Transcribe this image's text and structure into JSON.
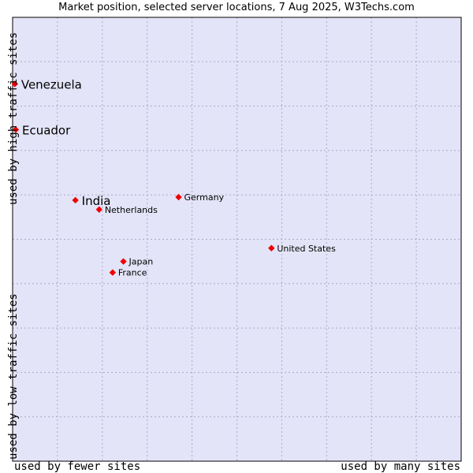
{
  "chart_data": {
    "type": "scatter",
    "title": "Market position, selected server locations, 7 Aug 2025, W3Techs.com",
    "xlabel_left": "used by fewer sites",
    "xlabel_right": "used by many sites",
    "ylabel_top": "used by high traffic sites",
    "ylabel_bottom": "used by low traffic sites",
    "xlim": [
      0,
      10
    ],
    "ylim": [
      0,
      10
    ],
    "grid": true,
    "colors": {
      "plot_bg": "#e4e4f8",
      "grid": "#a8a8c8",
      "marker": "#ee0000",
      "frame": "#000000"
    },
    "points": [
      {
        "name": "Venezuela",
        "x": 0.05,
        "y": 8.5,
        "emphasis": "large"
      },
      {
        "name": "Ecuador",
        "x": 0.07,
        "y": 7.47,
        "emphasis": "large"
      },
      {
        "name": "India",
        "x": 1.4,
        "y": 5.88,
        "emphasis": "large"
      },
      {
        "name": "Netherlands",
        "x": 1.93,
        "y": 5.67,
        "emphasis": "small"
      },
      {
        "name": "Germany",
        "x": 3.7,
        "y": 5.95,
        "emphasis": "small"
      },
      {
        "name": "United States",
        "x": 5.77,
        "y": 4.8,
        "emphasis": "small"
      },
      {
        "name": "Japan",
        "x": 2.47,
        "y": 4.5,
        "emphasis": "small"
      },
      {
        "name": "France",
        "x": 2.23,
        "y": 4.25,
        "emphasis": "small"
      }
    ]
  }
}
